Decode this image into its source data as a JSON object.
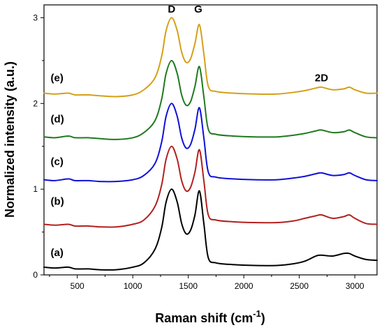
{
  "chart_data": {
    "type": "line",
    "title": "",
    "xlabel": "Raman shift (cm",
    "xlabel_sup": "-1",
    "xlabel_close": ")",
    "ylabel": "Normalized intensity (a.u.)",
    "xlim": [
      200,
      3200
    ],
    "ylim": [
      0,
      3.15
    ],
    "xticks": [
      500,
      1000,
      1500,
      2000,
      2500,
      3000
    ],
    "yticks": [
      0,
      1,
      2,
      3
    ],
    "grid": false,
    "annotations": [
      {
        "text": "D",
        "x": 1350,
        "y": 3.06
      },
      {
        "text": "G",
        "x": 1590,
        "y": 3.06
      },
      {
        "text": "2D",
        "x": 2700,
        "y": 2.26
      }
    ],
    "series": [
      {
        "label": "(a)",
        "label_x": 260,
        "label_y": 0.22,
        "color": "#000000",
        "x": [
          200,
          300,
          420,
          480,
          600,
          700,
          850,
          1000,
          1100,
          1200,
          1260,
          1300,
          1350,
          1400,
          1440,
          1480,
          1520,
          1560,
          1600,
          1640,
          1680,
          1750,
          1900,
          2100,
          2300,
          2450,
          2550,
          2650,
          2700,
          2800,
          2900,
          2950,
          3000,
          3100,
          3200
        ],
        "values": [
          0.09,
          0.08,
          0.09,
          0.07,
          0.07,
          0.06,
          0.06,
          0.09,
          0.14,
          0.3,
          0.55,
          0.85,
          1.0,
          0.85,
          0.6,
          0.48,
          0.52,
          0.7,
          0.98,
          0.6,
          0.2,
          0.14,
          0.12,
          0.11,
          0.11,
          0.13,
          0.16,
          0.22,
          0.23,
          0.22,
          0.25,
          0.25,
          0.22,
          0.18,
          0.17
        ]
      },
      {
        "label": "(b)",
        "label_x": 260,
        "label_y": 0.82,
        "color": "#b22020",
        "x": [
          200,
          300,
          420,
          480,
          600,
          700,
          850,
          1000,
          1100,
          1200,
          1260,
          1300,
          1350,
          1400,
          1440,
          1480,
          1520,
          1560,
          1600,
          1640,
          1680,
          1750,
          1900,
          2100,
          2300,
          2450,
          2550,
          2650,
          2700,
          2800,
          2900,
          2950,
          3000,
          3100,
          3200
        ],
        "values": [
          0.59,
          0.58,
          0.59,
          0.57,
          0.57,
          0.56,
          0.56,
          0.59,
          0.64,
          0.8,
          1.05,
          1.35,
          1.5,
          1.35,
          1.1,
          0.98,
          1.02,
          1.2,
          1.46,
          1.1,
          0.7,
          0.64,
          0.62,
          0.61,
          0.61,
          0.63,
          0.66,
          0.69,
          0.7,
          0.66,
          0.68,
          0.7,
          0.66,
          0.6,
          0.59
        ]
      },
      {
        "label": "(c)",
        "label_x": 260,
        "label_y": 1.28,
        "color": "#1010d8",
        "x": [
          200,
          300,
          420,
          480,
          600,
          700,
          850,
          1000,
          1100,
          1200,
          1260,
          1300,
          1350,
          1400,
          1440,
          1480,
          1520,
          1560,
          1600,
          1640,
          1680,
          1750,
          1900,
          2100,
          2300,
          2450,
          2550,
          2650,
          2700,
          2800,
          2900,
          2950,
          3000,
          3100,
          3200
        ],
        "values": [
          1.11,
          1.1,
          1.12,
          1.1,
          1.1,
          1.09,
          1.09,
          1.11,
          1.16,
          1.3,
          1.55,
          1.85,
          2.0,
          1.85,
          1.6,
          1.48,
          1.52,
          1.7,
          1.95,
          1.6,
          1.2,
          1.14,
          1.12,
          1.11,
          1.11,
          1.13,
          1.15,
          1.18,
          1.19,
          1.16,
          1.17,
          1.19,
          1.16,
          1.11,
          1.1
        ]
      },
      {
        "label": "(d)",
        "label_x": 260,
        "label_y": 1.78,
        "color": "#1f7a1f",
        "x": [
          200,
          300,
          420,
          480,
          600,
          700,
          850,
          1000,
          1100,
          1200,
          1260,
          1300,
          1350,
          1400,
          1440,
          1480,
          1520,
          1560,
          1600,
          1640,
          1680,
          1750,
          1900,
          2100,
          2300,
          2450,
          2550,
          2650,
          2700,
          2800,
          2900,
          2950,
          3000,
          3100,
          3200
        ],
        "values": [
          1.61,
          1.6,
          1.62,
          1.6,
          1.6,
          1.59,
          1.58,
          1.6,
          1.66,
          1.8,
          2.05,
          2.35,
          2.5,
          2.35,
          2.1,
          1.98,
          2.02,
          2.2,
          2.43,
          2.08,
          1.7,
          1.64,
          1.62,
          1.61,
          1.61,
          1.63,
          1.65,
          1.68,
          1.69,
          1.66,
          1.67,
          1.69,
          1.66,
          1.61,
          1.6
        ]
      },
      {
        "label": "(e)",
        "label_x": 260,
        "label_y": 2.26,
        "color": "#d4a017",
        "x": [
          200,
          300,
          420,
          480,
          600,
          700,
          850,
          1000,
          1100,
          1200,
          1260,
          1300,
          1350,
          1400,
          1440,
          1480,
          1520,
          1560,
          1600,
          1640,
          1680,
          1750,
          1900,
          2100,
          2300,
          2450,
          2550,
          2650,
          2700,
          2800,
          2900,
          2950,
          3000,
          3100,
          3200
        ],
        "values": [
          2.12,
          2.11,
          2.12,
          2.1,
          2.1,
          2.09,
          2.08,
          2.1,
          2.16,
          2.3,
          2.55,
          2.85,
          3.0,
          2.85,
          2.6,
          2.48,
          2.52,
          2.7,
          2.92,
          2.58,
          2.2,
          2.14,
          2.12,
          2.11,
          2.11,
          2.13,
          2.15,
          2.18,
          2.19,
          2.16,
          2.17,
          2.19,
          2.16,
          2.12,
          2.12
        ]
      }
    ]
  }
}
